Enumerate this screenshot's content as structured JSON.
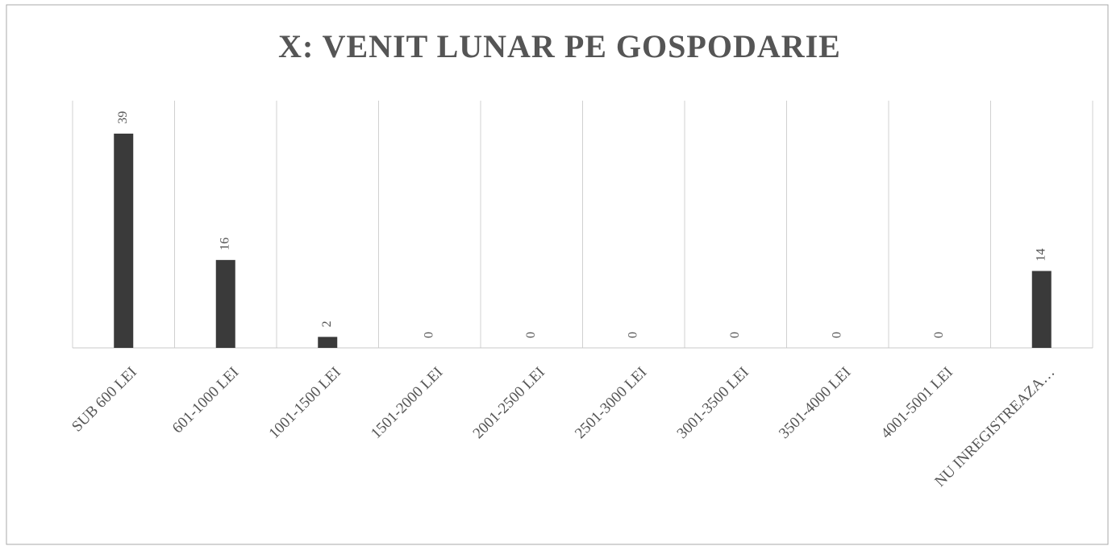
{
  "chart_data": {
    "type": "bar",
    "title": "X: VENIT LUNAR PE GOSPODARIE",
    "categories": [
      "SUB 600 LEI",
      "601-1000 LEI",
      "1001-1500 LEI",
      "1501-2000 LEI",
      "2001-2500 LEI",
      "2501-3000 LEI",
      "3001-3500 LEI",
      "3501-4000 LEI",
      "4001-5001 LEI",
      "NU INREGISTREAZA…"
    ],
    "values": [
      39,
      16,
      2,
      0,
      0,
      0,
      0,
      0,
      0,
      14
    ],
    "color": "#3a3a3a",
    "ylim": [
      0,
      45
    ],
    "grid": true
  }
}
